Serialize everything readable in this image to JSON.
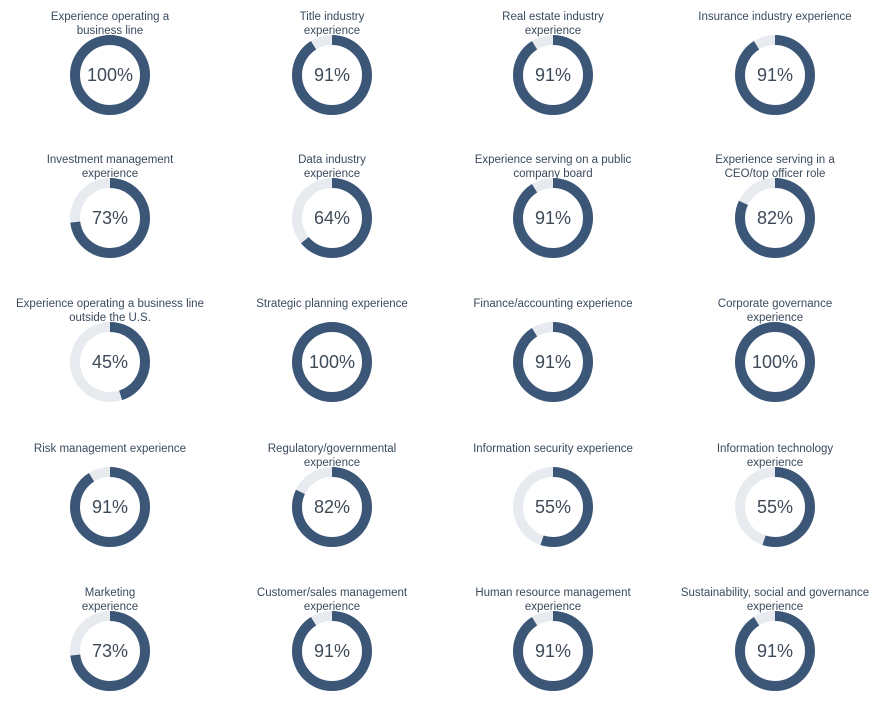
{
  "colors": {
    "value": "#3b5677",
    "track": "#e7ebef",
    "label": "#3e4a58",
    "title": "#3a4a5c"
  },
  "chart_data": {
    "type": "pie",
    "subtype": "donut-grid",
    "unit": "%",
    "items": [
      {
        "title": "Experience operating a\nbusiness line",
        "value": 100,
        "label": "100%"
      },
      {
        "title": "Title industry\nexperience",
        "value": 91,
        "label": "91%"
      },
      {
        "title": "Real estate industry\nexperience",
        "value": 91,
        "label": "91%"
      },
      {
        "title": "Insurance industry experience",
        "value": 91,
        "label": "91%"
      },
      {
        "title": "Investment management\nexperience",
        "value": 73,
        "label": "73%"
      },
      {
        "title": "Data industry\nexperience",
        "value": 64,
        "label": "64%"
      },
      {
        "title": "Experience serving on a public\ncompany board",
        "value": 91,
        "label": "91%"
      },
      {
        "title": "Experience serving in a\nCEO/top officer role",
        "value": 82,
        "label": "82%"
      },
      {
        "title": "Experience operating a business line\noutside the U.S.",
        "value": 45,
        "label": "45%"
      },
      {
        "title": "Strategic planning experience",
        "value": 100,
        "label": "100%"
      },
      {
        "title": "Finance/accounting experience",
        "value": 91,
        "label": "91%"
      },
      {
        "title": "Corporate governance\nexperience",
        "value": 100,
        "label": "100%"
      },
      {
        "title": "Risk management experience",
        "value": 91,
        "label": "91%"
      },
      {
        "title": "Regulatory/governmental\nexperience",
        "value": 82,
        "label": "82%"
      },
      {
        "title": "Information security experience",
        "value": 55,
        "label": "55%"
      },
      {
        "title": "Information technology\nexperience",
        "value": 55,
        "label": "55%"
      },
      {
        "title": "Marketing\nexperience",
        "value": 73,
        "label": "73%"
      },
      {
        "title": "Customer/sales management\nexperience",
        "value": 91,
        "label": "91%"
      },
      {
        "title": "Human resource management\nexperience",
        "value": 91,
        "label": "91%"
      },
      {
        "title": "Sustainability, social and governance\nexperience",
        "value": 91,
        "label": "91%"
      }
    ]
  }
}
